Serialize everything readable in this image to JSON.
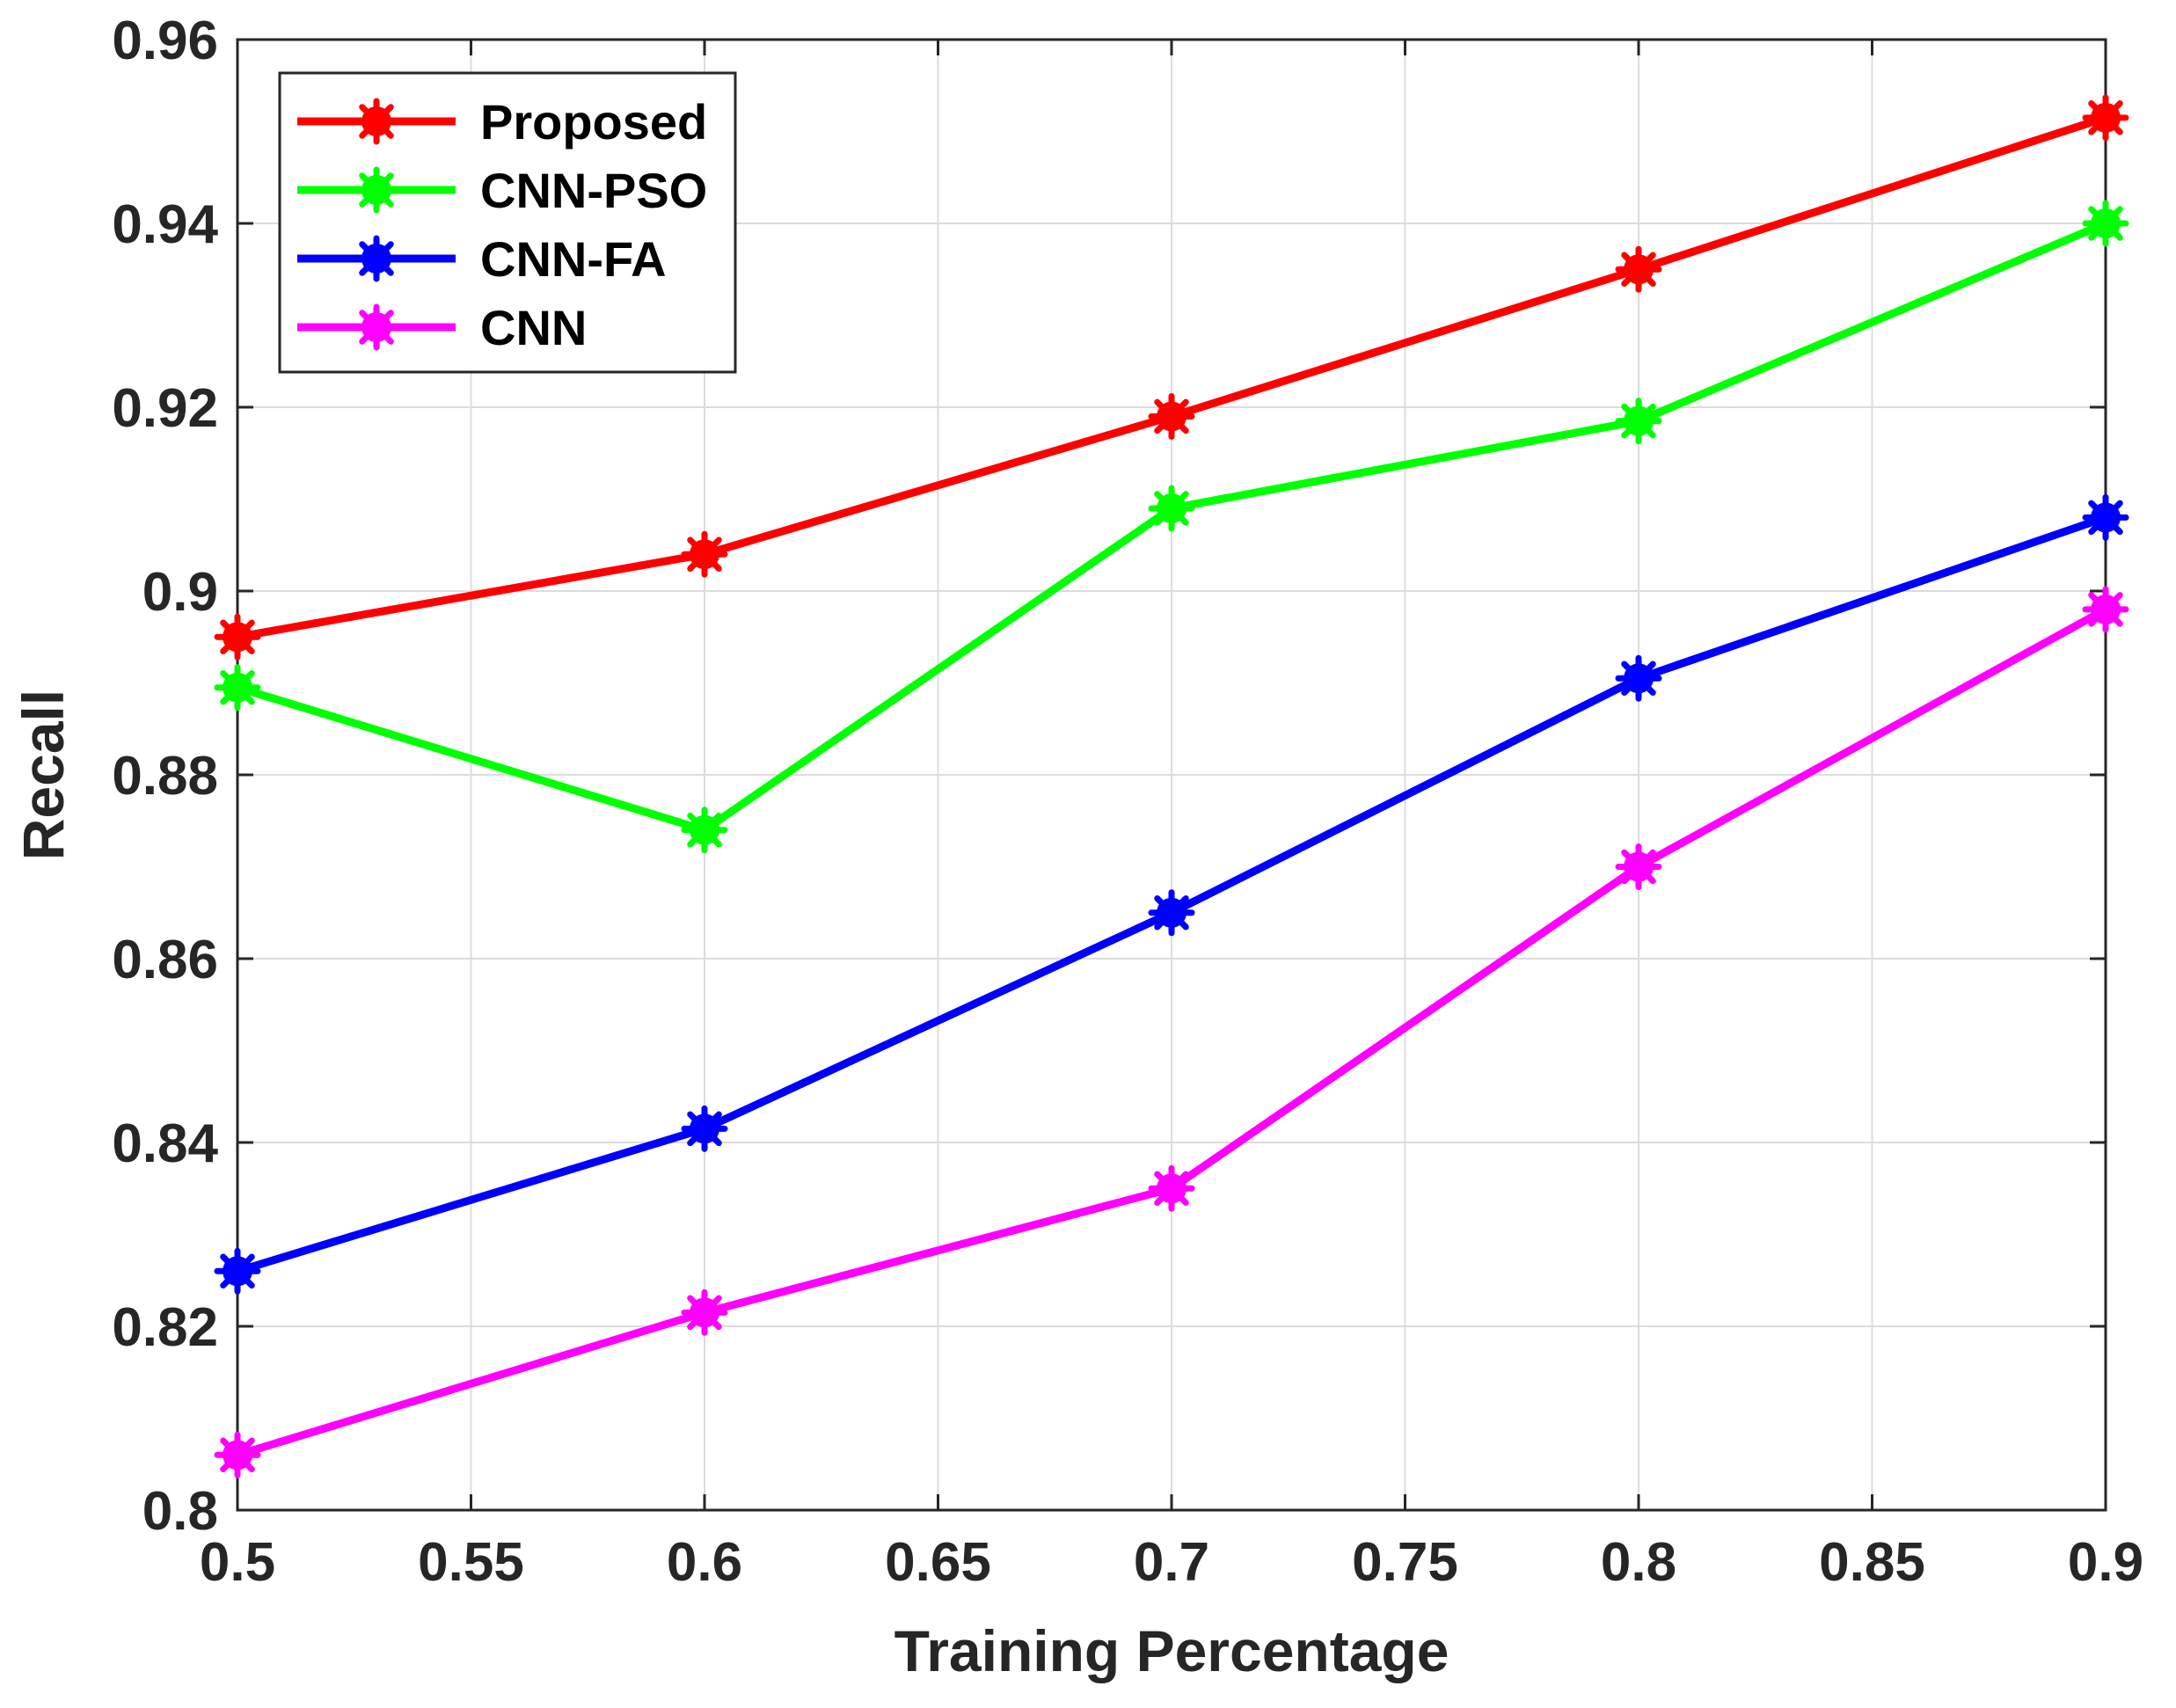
{
  "chart_data": {
    "type": "line",
    "xlabel": "Training Percentage",
    "ylabel": "Recall",
    "xlim": [
      0.5,
      0.9
    ],
    "ylim": [
      0.8,
      0.96
    ],
    "x_ticks": [
      "0.5",
      "0.55",
      "0.6",
      "0.65",
      "0.7",
      "0.75",
      "0.8",
      "0.85",
      "0.9"
    ],
    "y_ticks": [
      "0.8",
      "0.82",
      "0.84",
      "0.86",
      "0.88",
      "0.9",
      "0.92",
      "0.94",
      "0.96"
    ],
    "grid": true,
    "legend_position": "top-left",
    "x": [
      0.5,
      0.6,
      0.7,
      0.8,
      0.9
    ],
    "series": [
      {
        "name": "Proposed",
        "color": "#ff0000",
        "values": [
          0.895,
          0.904,
          0.919,
          0.935,
          0.9515
        ]
      },
      {
        "name": "CNN-PSO",
        "color": "#00ff00",
        "values": [
          0.8895,
          0.874,
          0.909,
          0.9185,
          0.94
        ]
      },
      {
        "name": "CNN-FA",
        "color": "#0000ff",
        "values": [
          0.826,
          0.8415,
          0.865,
          0.8905,
          0.908
        ]
      },
      {
        "name": "CNN",
        "color": "#ff00ff",
        "values": [
          0.806,
          0.8215,
          0.835,
          0.87,
          0.898
        ]
      }
    ]
  }
}
